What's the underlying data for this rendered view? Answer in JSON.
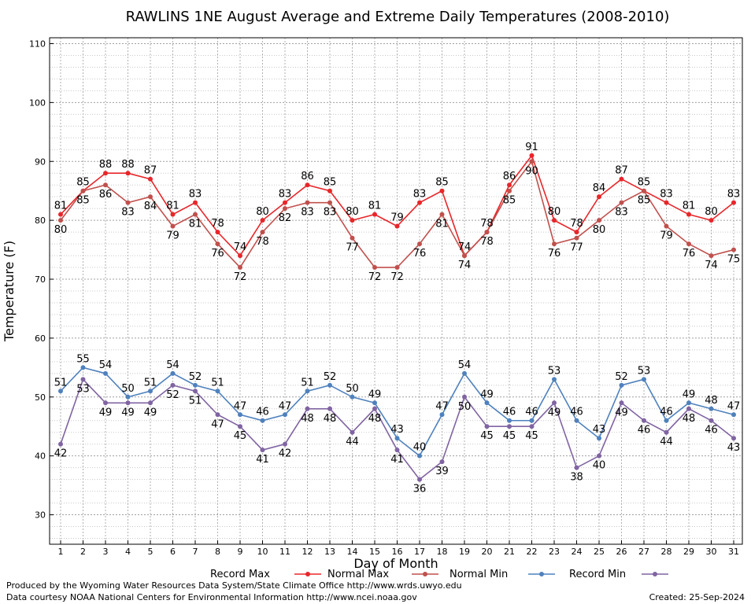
{
  "chart_data": {
    "type": "line",
    "title": "RAWLINS 1NE August Average and Extreme Daily Temperatures (2008-2010)",
    "xlabel": "Day of Month",
    "ylabel": "Temperature (F)",
    "ylim": [
      25,
      111
    ],
    "yticks": [
      30,
      40,
      50,
      60,
      70,
      80,
      90,
      100,
      110
    ],
    "x": [
      1,
      2,
      3,
      4,
      5,
      6,
      7,
      8,
      9,
      10,
      11,
      12,
      13,
      14,
      15,
      16,
      17,
      18,
      19,
      20,
      21,
      22,
      23,
      24,
      25,
      26,
      27,
      28,
      29,
      30,
      31
    ],
    "grid": true,
    "legend_position": "bottom",
    "series": [
      {
        "name": "Record Max",
        "color": "#e8262a",
        "values": [
          81,
          85,
          88,
          88,
          87,
          81,
          83,
          78,
          74,
          80,
          83,
          86,
          85,
          80,
          81,
          79,
          83,
          85,
          74,
          78,
          86,
          91,
          80,
          78,
          84,
          87,
          85,
          83,
          81,
          80,
          83
        ]
      },
      {
        "name": "Normal Max",
        "color": "#c0504d",
        "values": [
          80,
          85,
          86,
          83,
          84,
          79,
          81,
          76,
          72,
          78,
          82,
          83,
          83,
          77,
          72,
          72,
          76,
          81,
          74,
          78,
          85,
          90,
          76,
          77,
          80,
          83,
          85,
          79,
          76,
          74,
          75
        ]
      },
      {
        "name": "Normal Min",
        "color": "#4f81bd",
        "values": [
          51,
          55,
          54,
          50,
          51,
          54,
          52,
          51,
          47,
          46,
          47,
          51,
          52,
          50,
          49,
          43,
          40,
          47,
          54,
          49,
          46,
          46,
          53,
          46,
          43,
          52,
          53,
          46,
          49,
          48,
          47
        ]
      },
      {
        "name": "Record Min",
        "color": "#8064a2",
        "values": [
          42,
          53,
          49,
          49,
          49,
          52,
          51,
          47,
          45,
          41,
          42,
          48,
          48,
          44,
          48,
          41,
          36,
          39,
          50,
          45,
          45,
          45,
          49,
          38,
          40,
          49,
          46,
          44,
          48,
          46,
          43
        ]
      }
    ]
  },
  "footer": {
    "produced_by": "Produced by the Wyoming Water Resources Data System/State Climate Office http://www.wrds.uwyo.edu",
    "courtesy": "Data courtesy NOAA National Centers for Environmental Information http://www.ncei.noaa.gov",
    "created": "Created:  25-Sep-2024"
  }
}
